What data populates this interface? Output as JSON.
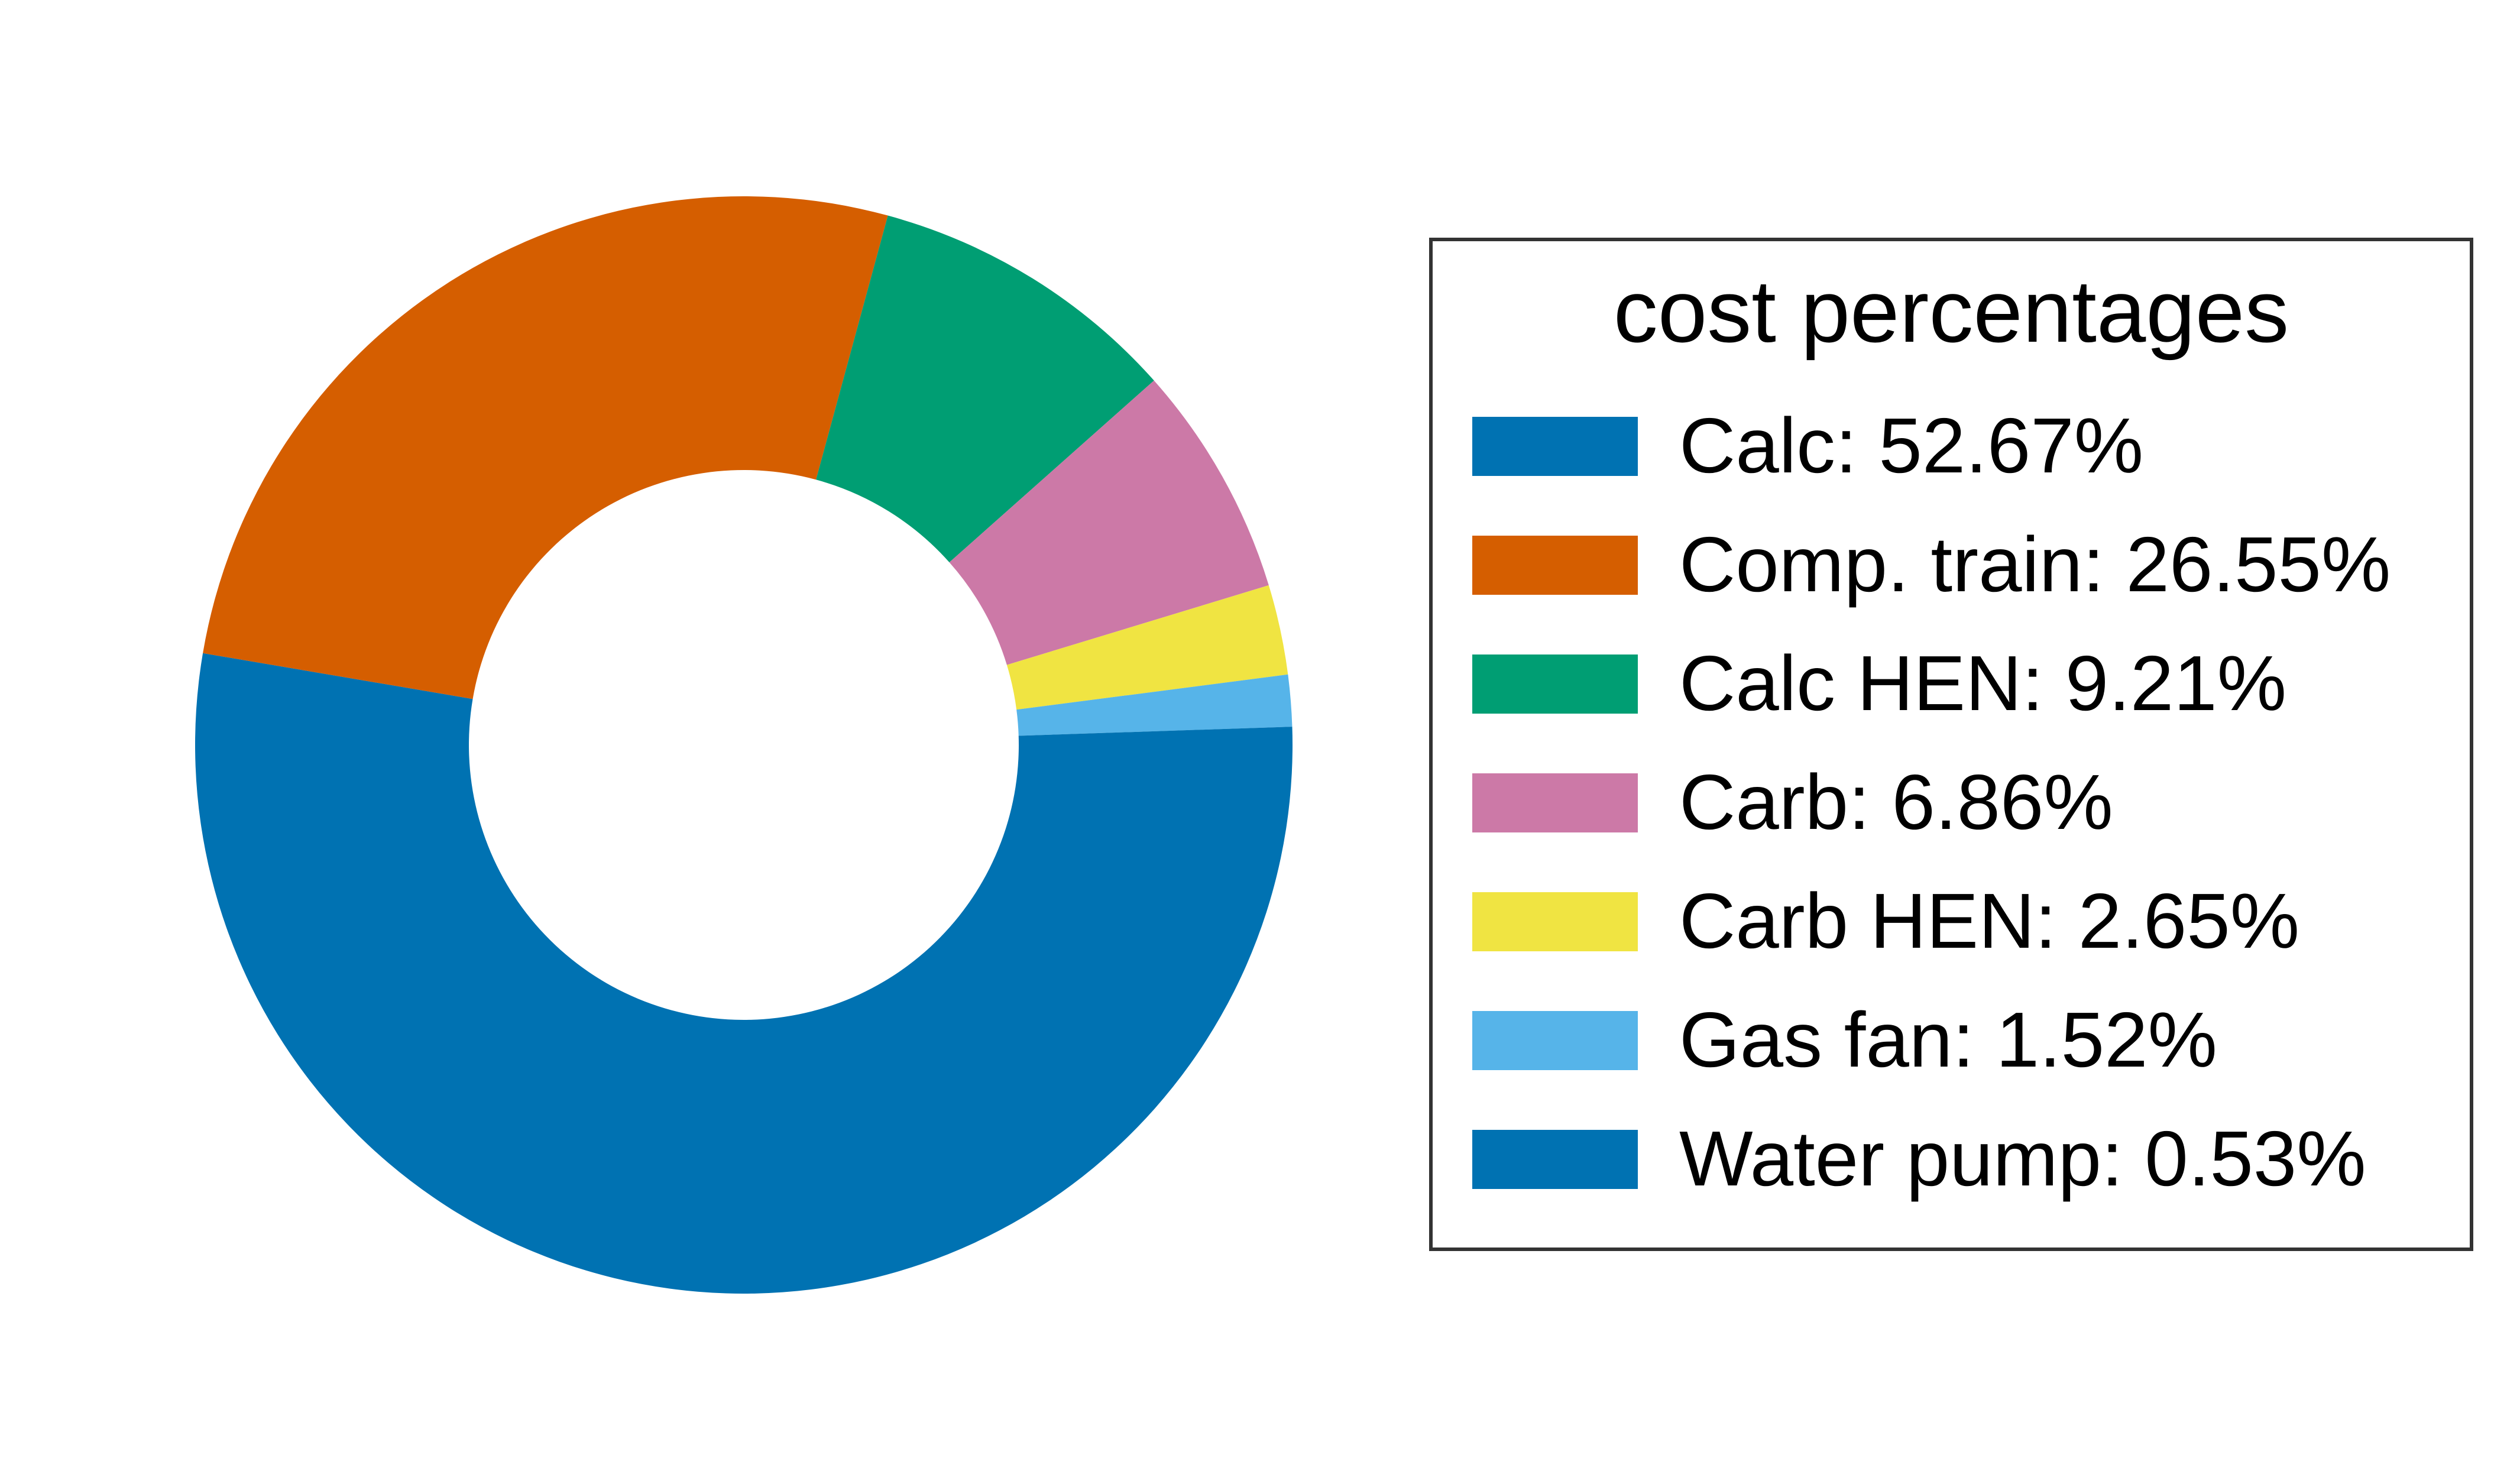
{
  "chart_data": {
    "type": "pie",
    "donut": true,
    "legend_title": "cost percentages",
    "legend_placement": "right",
    "slices": [
      {
        "label": "Calc: 52.67%",
        "name": "Calc",
        "value": 52.67,
        "color": "#0072B2"
      },
      {
        "label": "Comp. train: 26.55%",
        "name": "Comp. train",
        "value": 26.55,
        "color": "#D55E00"
      },
      {
        "label": "Calc HEN: 9.21%",
        "name": "Calc HEN",
        "value": 9.21,
        "color": "#009E73"
      },
      {
        "label": "Carb: 6.86%",
        "name": "Carb",
        "value": 6.86,
        "color": "#CC79A7"
      },
      {
        "label": "Carb HEN: 2.65%",
        "name": "Carb HEN",
        "value": 2.65,
        "color": "#F0E442"
      },
      {
        "label": "Gas fan: 1.52%",
        "name": "Gas fan",
        "value": 1.52,
        "color": "#56B4E9"
      },
      {
        "label": "Water pump: 0.53%",
        "name": "Water pump",
        "value": 0.53,
        "color": "#0072B2"
      }
    ]
  }
}
